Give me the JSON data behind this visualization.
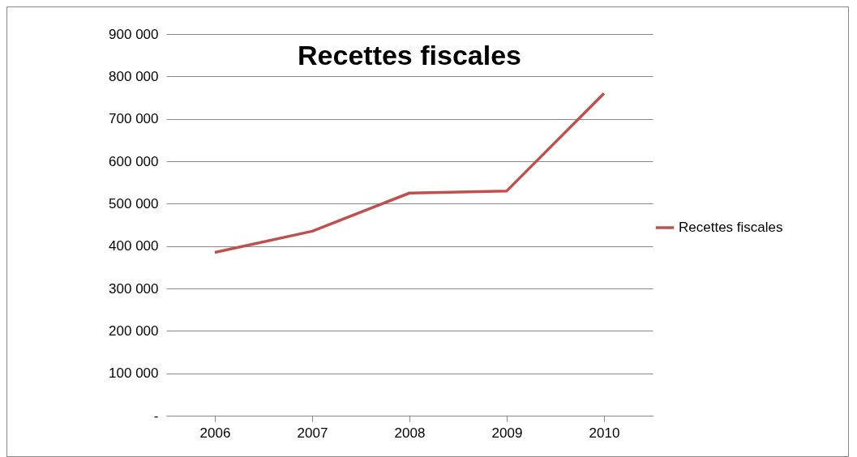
{
  "chart_data": {
    "type": "line",
    "title": "Recettes fiscales",
    "categories": [
      "2006",
      "2007",
      "2008",
      "2009",
      "2010"
    ],
    "series": [
      {
        "name": "Recettes fiscales",
        "color": "#c0504d",
        "values": [
          385000,
          435000,
          525000,
          530000,
          760000
        ]
      }
    ],
    "ylim": [
      0,
      900000
    ],
    "yticks": [
      {
        "value": 0,
        "label": "-"
      },
      {
        "value": 100000,
        "label": "100 000"
      },
      {
        "value": 200000,
        "label": "200 000"
      },
      {
        "value": 300000,
        "label": "300 000"
      },
      {
        "value": 400000,
        "label": "400 000"
      },
      {
        "value": 500000,
        "label": "500 000"
      },
      {
        "value": 600000,
        "label": "600 000"
      },
      {
        "value": 700000,
        "label": "700 000"
      },
      {
        "value": 800000,
        "label": "800 000"
      },
      {
        "value": 900000,
        "label": "900 000"
      }
    ],
    "grid": "y",
    "legend": "right",
    "marker": "none",
    "line_style": "solid"
  }
}
